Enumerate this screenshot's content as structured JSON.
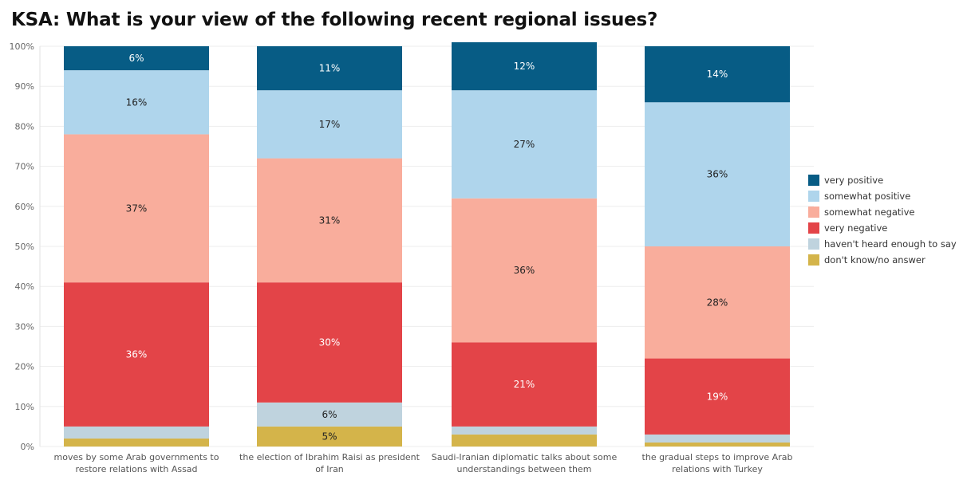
{
  "chart_data": {
    "type": "bar",
    "stacked": true,
    "title": "KSA: What is your view of the following recent regional issues?",
    "categories": [
      [
        "moves by some Arab governments to",
        "restore relations with Assad"
      ],
      [
        "the election of Ibrahim Raisi as president",
        "of Iran"
      ],
      [
        "Saudi-Iranian diplomatic talks about some",
        "understandings between them"
      ],
      [
        "the gradual steps to improve Arab",
        "relations with Turkey"
      ]
    ],
    "ylim": [
      0,
      100
    ],
    "yticks": [
      "0%",
      "10%",
      "20%",
      "30%",
      "40%",
      "50%",
      "60%",
      "70%",
      "80%",
      "90%",
      "100%"
    ],
    "xlabel": "",
    "ylabel": "",
    "legend_position": "right",
    "series": [
      {
        "name": "don't know/no answer",
        "color": "#D4B44A",
        "values": [
          2,
          5,
          3,
          1
        ],
        "labels": [
          "",
          "5%",
          "",
          ""
        ]
      },
      {
        "name": "haven't heard enough to say",
        "color": "#BFD3DE",
        "values": [
          3,
          6,
          2,
          2
        ],
        "labels": [
          "",
          "6%",
          "",
          ""
        ]
      },
      {
        "name": "very negative",
        "color": "#E34448",
        "values": [
          36,
          30,
          21,
          19
        ],
        "labels": [
          "36%",
          "30%",
          "21%",
          "19%"
        ]
      },
      {
        "name": "somewhat negative",
        "color": "#F9AD9C",
        "values": [
          37,
          31,
          36,
          28
        ],
        "labels": [
          "37%",
          "31%",
          "36%",
          "28%"
        ]
      },
      {
        "name": "somewhat positive",
        "color": "#AFD5EC",
        "values": [
          16,
          17,
          27,
          36
        ],
        "labels": [
          "16%",
          "17%",
          "27%",
          "36%"
        ]
      },
      {
        "name": "very positive",
        "color": "#075C85",
        "values": [
          6,
          11,
          12,
          14
        ],
        "labels": [
          "6%",
          "11%",
          "12%",
          "14%"
        ]
      }
    ],
    "legend": [
      {
        "name": "very positive",
        "color": "#075C85"
      },
      {
        "name": "somewhat positive",
        "color": "#AFD5EC"
      },
      {
        "name": "somewhat negative",
        "color": "#F9AD9C"
      },
      {
        "name": "very negative",
        "color": "#E34448"
      },
      {
        "name": "haven't heard enough to say",
        "color": "#BFD3DE"
      },
      {
        "name": "don't know/no answer",
        "color": "#D4B44A"
      }
    ]
  }
}
